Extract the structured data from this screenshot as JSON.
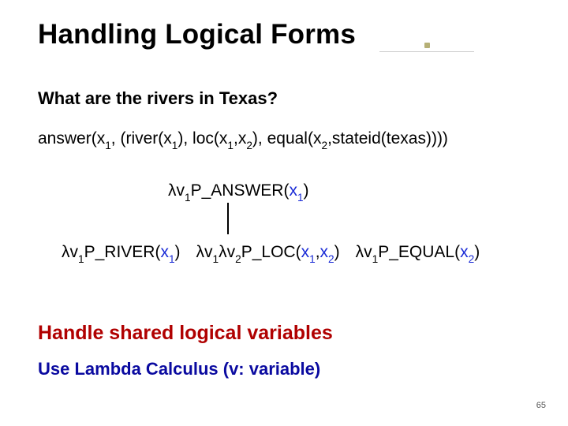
{
  "title": "Handling Logical Forms",
  "question": "What are the rivers in Texas?",
  "formula": {
    "p1": "answer(x",
    "s1": "1",
    "p2": ", (river(x",
    "s2": "1",
    "p3": "), loc(x",
    "s3": "1",
    "p4": ",x",
    "s4": "2",
    "p5": "), equal(x",
    "s5": "2",
    "p6": ",stateid(texas))))"
  },
  "tree": {
    "answer": {
      "a": "λv",
      "b": "1",
      "c": "P_ANSWER(",
      "d": "x",
      "e": "1",
      "f": ")"
    },
    "river": {
      "a": "λv",
      "b": "1",
      "c": "P_RIVER(",
      "d": "x",
      "e": "1",
      "f": ")"
    },
    "loc": {
      "a": "λv",
      "b": "1",
      "c": "λv",
      "d": "2",
      "e": "P_LOC(",
      "f": "x",
      "g": "1",
      "h": ",",
      "i": "x",
      "j": "2",
      "k": ")"
    },
    "equal": {
      "a": "λv",
      "b": "1",
      "c": "P_EQUAL(",
      "d": "x",
      "e": "2",
      "f": ")"
    }
  },
  "highlight1": "Handle shared logical variables",
  "highlight2": "Use Lambda Calculus (v: variable)",
  "slide_number": "65",
  "colors": {
    "title": "#000000",
    "question": "#000000",
    "formula": "#000000",
    "var_blue": "#1a2bd6",
    "highlight1": "#b00000",
    "highlight2": "#0a0aa0",
    "accent_dot": "#b6b076",
    "accent_bar": "#cfcfcf",
    "background": "#ffffff",
    "edge": "#000000"
  }
}
